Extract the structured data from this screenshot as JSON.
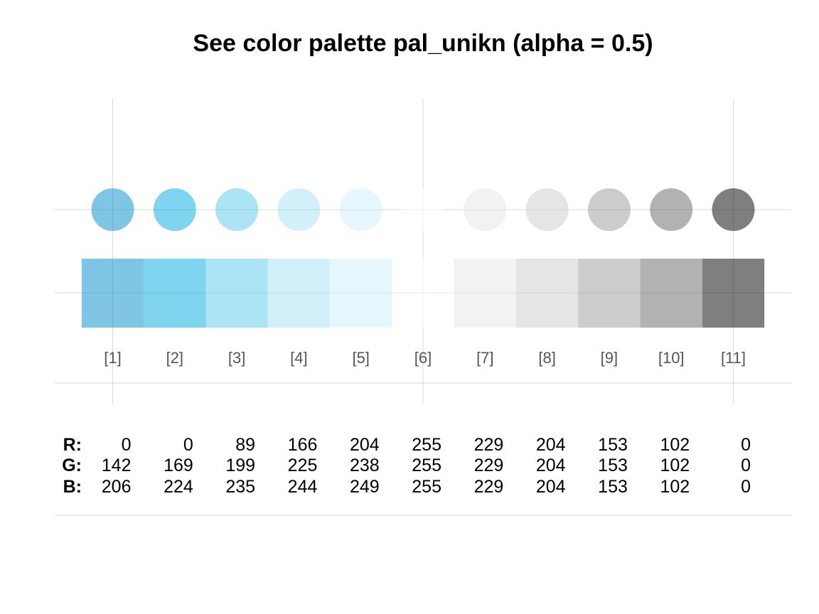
{
  "chart_data": {
    "type": "table",
    "title": "See color palette pal_unikn (alpha = 0.5)",
    "alpha": 0.5,
    "grid": true,
    "indices": [
      "[1]",
      "[2]",
      "[3]",
      "[4]",
      "[5]",
      "[6]",
      "[7]",
      "[8]",
      "[9]",
      "[10]",
      "[11]"
    ],
    "colors": [
      {
        "index": "[1]",
        "hex": "#008ECE",
        "r": 0,
        "g": 142,
        "b": 206
      },
      {
        "index": "[2]",
        "hex": "#00A9E0",
        "r": 0,
        "g": 169,
        "b": 224
      },
      {
        "index": "[3]",
        "hex": "#59C7EB",
        "r": 89,
        "g": 199,
        "b": 235
      },
      {
        "index": "[4]",
        "hex": "#A6E1F4",
        "r": 166,
        "g": 225,
        "b": 244
      },
      {
        "index": "[5]",
        "hex": "#CCEEF9",
        "r": 204,
        "g": 238,
        "b": 249
      },
      {
        "index": "[6]",
        "hex": "#FFFFFF",
        "r": 255,
        "g": 255,
        "b": 255
      },
      {
        "index": "[7]",
        "hex": "#E5E5E5",
        "r": 229,
        "g": 229,
        "b": 229
      },
      {
        "index": "[8]",
        "hex": "#CCCCCC",
        "r": 204,
        "g": 204,
        "b": 204
      },
      {
        "index": "[9]",
        "hex": "#999999",
        "r": 153,
        "g": 153,
        "b": 153
      },
      {
        "index": "[10]",
        "hex": "#666666",
        "r": 102,
        "g": 102,
        "b": 102
      },
      {
        "index": "[11]",
        "hex": "#000000",
        "r": 0,
        "g": 0,
        "b": 0
      }
    ],
    "rgb_labels": {
      "r": "R:",
      "g": "G:",
      "b": "B:"
    }
  }
}
